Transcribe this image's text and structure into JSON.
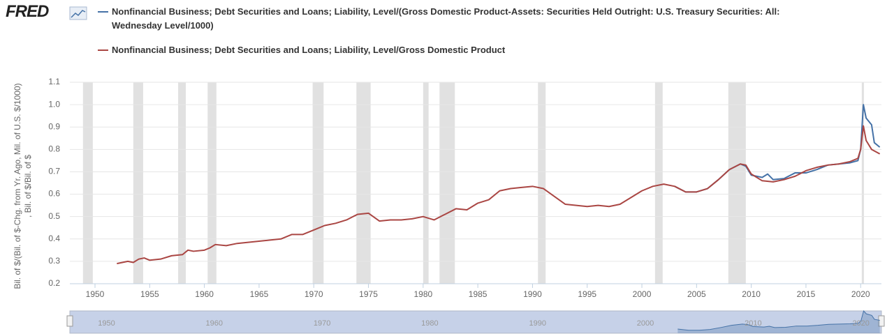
{
  "logo": "FRED",
  "chart_data": {
    "type": "line",
    "y_label": "Bil. of $/(Bil. of $-Chg. from Yr. Ago, Mil. of U.S. $/1000) , Bil. of $/Bil. of $",
    "xlim": [
      1947.7,
      2021.9
    ],
    "xticks": [
      1950,
      1955,
      1960,
      1965,
      1970,
      1975,
      1980,
      1985,
      1990,
      1995,
      2000,
      2005,
      2010,
      2015,
      2020
    ],
    "ylim": [
      0.2,
      1.1
    ],
    "yticks": [
      0.2,
      0.3,
      0.4,
      0.5,
      0.6,
      0.7,
      0.8,
      0.9,
      {
        "value": 1,
        "label": "1.0"
      },
      1.1
    ],
    "grid": true,
    "recession_color": "#e1e1e1",
    "recessions": [
      [
        1948.9,
        1949.8
      ],
      [
        1953.5,
        1954.4
      ],
      [
        1957.6,
        1958.3
      ],
      [
        1960.3,
        1961.1
      ],
      [
        1969.9,
        1970.9
      ],
      [
        1973.9,
        1975.2
      ],
      [
        1980.0,
        1980.5
      ],
      [
        1981.5,
        1982.9
      ],
      [
        1990.5,
        1991.2
      ],
      [
        2001.2,
        2001.9
      ],
      [
        2007.9,
        2009.5
      ],
      [
        2020.1,
        2020.3
      ]
    ],
    "series": [
      {
        "name": "Nonfinancial Business; Debt Securities and Loans; Liability, Level/(Gross Domestic Product-Assets: Securities Held Outright: U.S. Treasury Securities: All: Wednesday Level/1000)",
        "color": "#4572a7",
        "x": [
          2003,
          2004,
          2005,
          2006,
          2007,
          2008,
          2009,
          2009.5,
          2010,
          2011,
          2011.5,
          2012,
          2013,
          2014,
          2015,
          2016,
          2017,
          2018,
          2019,
          2019.75,
          2020,
          2020.25,
          2020.5,
          2021,
          2021.25,
          2021.75
        ],
        "values": [
          0.635,
          0.61,
          0.61,
          0.625,
          0.665,
          0.71,
          0.735,
          0.725,
          0.685,
          0.675,
          0.69,
          0.665,
          0.67,
          0.695,
          0.695,
          0.71,
          0.73,
          0.735,
          0.74,
          0.75,
          0.8,
          1.0,
          0.94,
          0.91,
          0.83,
          0.81
        ]
      },
      {
        "name": "Nonfinancial Business; Debt Securities and Loans; Liability, Level/Gross Domestic Product",
        "color": "#aa4643",
        "x": [
          1952,
          1953,
          1953.5,
          1954,
          1954.5,
          1955,
          1956,
          1957,
          1958,
          1958.5,
          1959,
          1960,
          1960.5,
          1961,
          1962,
          1963,
          1964,
          1965,
          1966,
          1967,
          1968,
          1969,
          1970,
          1971,
          1972,
          1973,
          1974,
          1975,
          1976,
          1977,
          1978,
          1979,
          1980,
          1981,
          1982,
          1983,
          1984,
          1985,
          1986,
          1987,
          1988,
          1989,
          1990,
          1991,
          1992,
          1993,
          1994,
          1995,
          1996,
          1997,
          1998,
          1999,
          2000,
          2001,
          2002,
          2003,
          2004,
          2005,
          2006,
          2007,
          2008,
          2009,
          2009.5,
          2010,
          2011,
          2012,
          2013,
          2014,
          2015,
          2016,
          2017,
          2018,
          2019,
          2019.75,
          2020,
          2020.25,
          2020.5,
          2021,
          2021.75
        ],
        "values": [
          0.29,
          0.3,
          0.295,
          0.31,
          0.315,
          0.305,
          0.31,
          0.325,
          0.33,
          0.35,
          0.345,
          0.35,
          0.36,
          0.375,
          0.37,
          0.38,
          0.385,
          0.39,
          0.395,
          0.4,
          0.42,
          0.42,
          0.44,
          0.46,
          0.47,
          0.485,
          0.51,
          0.515,
          0.48,
          0.485,
          0.485,
          0.49,
          0.5,
          0.485,
          0.51,
          0.535,
          0.53,
          0.56,
          0.575,
          0.615,
          0.625,
          0.63,
          0.635,
          0.625,
          0.59,
          0.555,
          0.55,
          0.545,
          0.55,
          0.545,
          0.555,
          0.585,
          0.615,
          0.635,
          0.645,
          0.635,
          0.61,
          0.61,
          0.625,
          0.665,
          0.71,
          0.735,
          0.73,
          0.69,
          0.66,
          0.655,
          0.665,
          0.68,
          0.705,
          0.72,
          0.73,
          0.735,
          0.745,
          0.76,
          0.8,
          0.905,
          0.84,
          0.8,
          0.78
        ]
      }
    ],
    "navigator": {
      "xlim": [
        1946.6,
        2021.9
      ],
      "ylim": [
        0.55,
        1.0
      ],
      "xticks": [
        1950,
        1960,
        1970,
        1980,
        1990,
        2000,
        2010,
        2020
      ]
    }
  }
}
